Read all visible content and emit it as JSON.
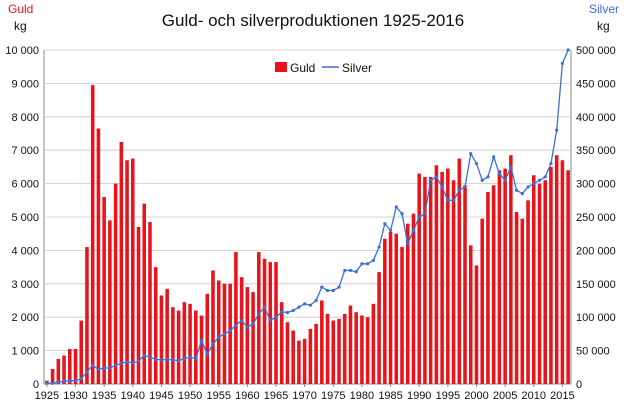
{
  "chart_data": {
    "type": "bar",
    "title": "Guld- och silverproduktionen 1925-2016",
    "left_axis": {
      "series_label": "Guld",
      "unit": "kg",
      "ylim": [
        0,
        10000
      ],
      "ticks": [
        "0",
        "1 000",
        "2 000",
        "3 000",
        "4 000",
        "5 000",
        "6 000",
        "7 000",
        "8 000",
        "9 000",
        "10 000"
      ]
    },
    "right_axis": {
      "series_label": "Silver",
      "unit": "kg",
      "ylim": [
        0,
        500000
      ],
      "ticks": [
        "0",
        "50 000",
        "100 000",
        "150 000",
        "200 000",
        "250 000",
        "300 000",
        "350 000",
        "400 000",
        "450 000",
        "500 000"
      ]
    },
    "x_ticks": [
      "1925",
      "1930",
      "1935",
      "1940",
      "1945",
      "1950",
      "1955",
      "1960",
      "1965",
      "1970",
      "1975",
      "1980",
      "1985",
      "1990",
      "1995",
      "2000",
      "2005",
      "2010",
      "2015"
    ],
    "legend": {
      "placement": "top-center",
      "gold": "Guld",
      "silver": "Silver"
    },
    "colors": {
      "gold": "#e8141b",
      "silver": "#3a6fd8",
      "gold_axis_label": "#e8141b",
      "silver_axis_label": "#3a6fd8"
    },
    "years": [
      1925,
      1926,
      1927,
      1928,
      1929,
      1930,
      1931,
      1932,
      1933,
      1934,
      1935,
      1936,
      1937,
      1938,
      1939,
      1940,
      1941,
      1942,
      1943,
      1944,
      1945,
      1946,
      1947,
      1948,
      1949,
      1950,
      1951,
      1952,
      1953,
      1954,
      1955,
      1956,
      1957,
      1958,
      1959,
      1960,
      1961,
      1962,
      1963,
      1964,
      1965,
      1966,
      1967,
      1968,
      1969,
      1970,
      1971,
      1972,
      1973,
      1974,
      1975,
      1976,
      1977,
      1978,
      1979,
      1980,
      1981,
      1982,
      1983,
      1984,
      1985,
      1986,
      1987,
      1988,
      1989,
      1990,
      1991,
      1992,
      1993,
      1994,
      1995,
      1996,
      1997,
      1998,
      1999,
      2000,
      2001,
      2002,
      2003,
      2004,
      2005,
      2006,
      2007,
      2008,
      2009,
      2010,
      2011,
      2012,
      2013,
      2014,
      2015,
      2016
    ],
    "series": [
      {
        "name": "Guld",
        "axis": "left",
        "type": "bar",
        "values": [
          100,
          450,
          750,
          850,
          1050,
          1050,
          1900,
          4100,
          8950,
          7650,
          5600,
          4900,
          6000,
          7250,
          6700,
          6750,
          4700,
          5400,
          4850,
          3500,
          2650,
          2850,
          2300,
          2200,
          2450,
          2400,
          2200,
          2050,
          2700,
          3400,
          3100,
          3000,
          3000,
          3950,
          3200,
          2900,
          2750,
          3950,
          3750,
          3650,
          3650,
          2450,
          1850,
          1600,
          1300,
          1350,
          1650,
          1800,
          2500,
          2100,
          1900,
          1950,
          2100,
          2350,
          2150,
          2050,
          2000,
          2400,
          3350,
          4350,
          4550,
          4500,
          4100,
          4800,
          5100,
          6300,
          6200,
          6200,
          6550,
          6350,
          6450,
          6100,
          6750,
          5950,
          4150,
          3550,
          4950,
          5750,
          5950,
          6400,
          6450,
          6850,
          5150,
          4950,
          5500,
          6250,
          6000,
          6100,
          6500,
          6850,
          6700,
          6400
        ]
      },
      {
        "name": "Silver",
        "axis": "right",
        "type": "line",
        "values": [
          1000,
          1000,
          3000,
          4000,
          5000,
          5000,
          8000,
          18000,
          28000,
          22000,
          24000,
          24000,
          28000,
          31000,
          33000,
          32000,
          34000,
          43000,
          40000,
          37000,
          36000,
          37000,
          36000,
          35000,
          38000,
          40000,
          38000,
          65000,
          45000,
          60000,
          70000,
          75000,
          80000,
          88000,
          95000,
          85000,
          90000,
          105000,
          115000,
          95000,
          100000,
          108000,
          107000,
          110000,
          115000,
          120000,
          118000,
          125000,
          145000,
          140000,
          140000,
          145000,
          170000,
          170000,
          168000,
          180000,
          180000,
          185000,
          205000,
          240000,
          230000,
          265000,
          255000,
          210000,
          230000,
          250000,
          255000,
          305000,
          310000,
          295000,
          275000,
          275000,
          290000,
          295000,
          345000,
          330000,
          305000,
          310000,
          340000,
          315000,
          305000,
          325000,
          290000,
          285000,
          295000,
          300000,
          305000,
          310000,
          330000,
          380000,
          480000,
          500000
        ]
      }
    ]
  }
}
